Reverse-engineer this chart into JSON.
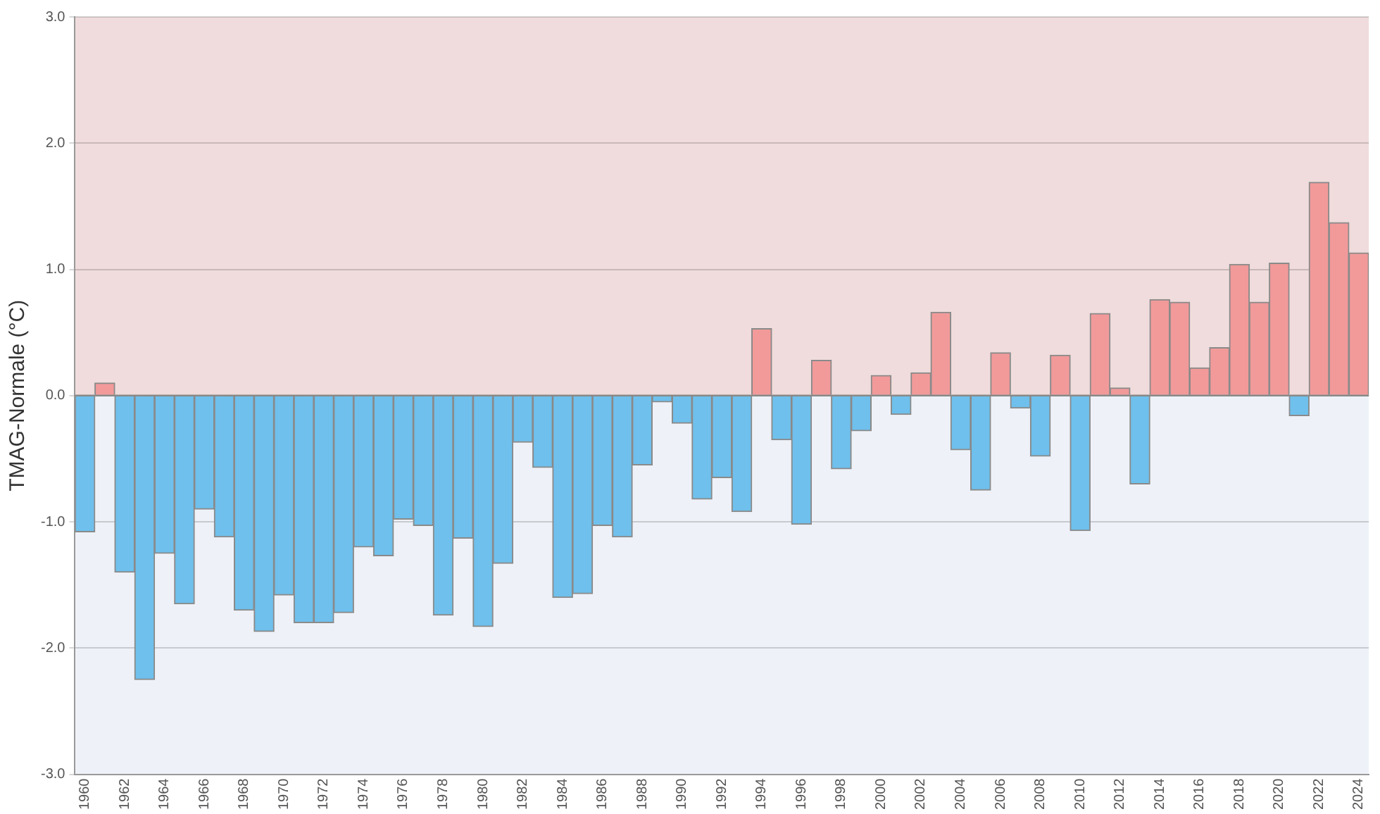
{
  "chart_data": {
    "type": "bar",
    "ylabel": "TMAG-Normale (°C)",
    "categories": [
      "1960",
      null,
      "1962",
      null,
      "1964",
      null,
      "1966",
      null,
      "1968",
      null,
      "1970",
      null,
      "1972",
      null,
      "1974",
      null,
      "1976",
      null,
      "1978",
      null,
      "1980",
      null,
      "1982",
      null,
      "1984",
      null,
      "1986",
      null,
      "1988",
      null,
      "1990",
      null,
      "1992",
      null,
      "1994",
      null,
      "1996",
      null,
      "1998",
      null,
      "2000",
      null,
      "2002",
      null,
      "2004",
      null,
      "2006",
      null,
      "2008",
      null,
      "2010",
      null,
      "2012",
      null,
      "2014",
      null,
      "2016",
      null,
      "2018",
      null,
      "2020",
      null,
      "2022",
      null,
      "2024"
    ],
    "values": [
      -1.08,
      0.1,
      -1.4,
      -2.25,
      -1.25,
      -1.65,
      -0.9,
      -1.12,
      -1.7,
      -1.87,
      -1.58,
      -1.8,
      -1.8,
      -1.72,
      -1.2,
      -1.27,
      -0.98,
      -1.03,
      -1.74,
      -1.13,
      -1.83,
      -1.33,
      -0.37,
      -0.57,
      -1.6,
      -1.57,
      -1.03,
      -1.12,
      -0.55,
      -0.05,
      -0.22,
      -0.82,
      -0.65,
      -0.92,
      0.53,
      -0.35,
      -1.02,
      0.28,
      -0.58,
      -0.28,
      0.16,
      -0.15,
      0.18,
      0.66,
      -0.43,
      -0.75,
      0.34,
      -0.1,
      -0.48,
      0.32,
      -1.07,
      0.65,
      0.06,
      -0.7,
      0.76,
      0.74,
      0.22,
      0.38,
      1.04,
      0.74,
      1.05,
      -0.16,
      1.69,
      1.37,
      1.13
    ],
    "colors": [
      "#6fc0ec",
      "#f29a9a",
      "#6fc0ec",
      "#6fc0ec",
      "#6fc0ec",
      "#6fc0ec",
      "#6fc0ec",
      "#6fc0ec",
      "#6fc0ec",
      "#6fc0ec",
      "#6fc0ec",
      "#6fc0ec",
      "#6fc0ec",
      "#6fc0ec",
      "#6fc0ec",
      "#6fc0ec",
      "#6fc0ec",
      "#6fc0ec",
      "#6fc0ec",
      "#6fc0ec",
      "#6fc0ec",
      "#6fc0ec",
      "#6fc0ec",
      "#6fc0ec",
      "#6fc0ec",
      "#6fc0ec",
      "#6fc0ec",
      "#6fc0ec",
      "#6fc0ec",
      "#6fc0ec",
      "#6fc0ec",
      "#6fc0ec",
      "#6fc0ec",
      "#6fc0ec",
      "#f29a9a",
      "#6fc0ec",
      "#6fc0ec",
      "#f29a9a",
      "#6fc0ec",
      "#6fc0ec",
      "#f29a9a",
      "#6fc0ec",
      "#f29a9a",
      "#f29a9a",
      "#6fc0ec",
      "#6fc0ec",
      "#f29a9a",
      "#6fc0ec",
      "#6fc0ec",
      "#f29a9a",
      "#6fc0ec",
      "#f29a9a",
      "#f29a9a",
      "#6fc0ec",
      "#f29a9a",
      "#f29a9a",
      "#f29a9a",
      "#f29a9a",
      "#f29a9a",
      "#f29a9a",
      "#f29a9a",
      "#6fc0ec",
      "#f29a9a",
      "#f29a9a",
      "#f29a9a"
    ],
    "ylim": [
      -3,
      3
    ],
    "yticks": [
      {
        "value": -3,
        "label": "-3.0"
      },
      {
        "value": -2,
        "label": "-2.0"
      },
      {
        "value": -1,
        "label": "-1.0"
      },
      {
        "value": 0,
        "label": "0.0"
      },
      {
        "value": 1,
        "label": "1.0"
      },
      {
        "value": 2,
        "label": "2.0"
      },
      {
        "value": 3,
        "label": "3.0"
      }
    ],
    "bands": [
      {
        "axis": "y",
        "from": 0,
        "to": 3,
        "color": "#f0dcdc"
      },
      {
        "axis": "y",
        "from": -3,
        "to": 0,
        "color": "#eef2f8"
      }
    ],
    "ref_lines": [
      {
        "axis": "y",
        "value": 0,
        "color": "#888888"
      }
    ],
    "grid": "y",
    "legend": false
  }
}
